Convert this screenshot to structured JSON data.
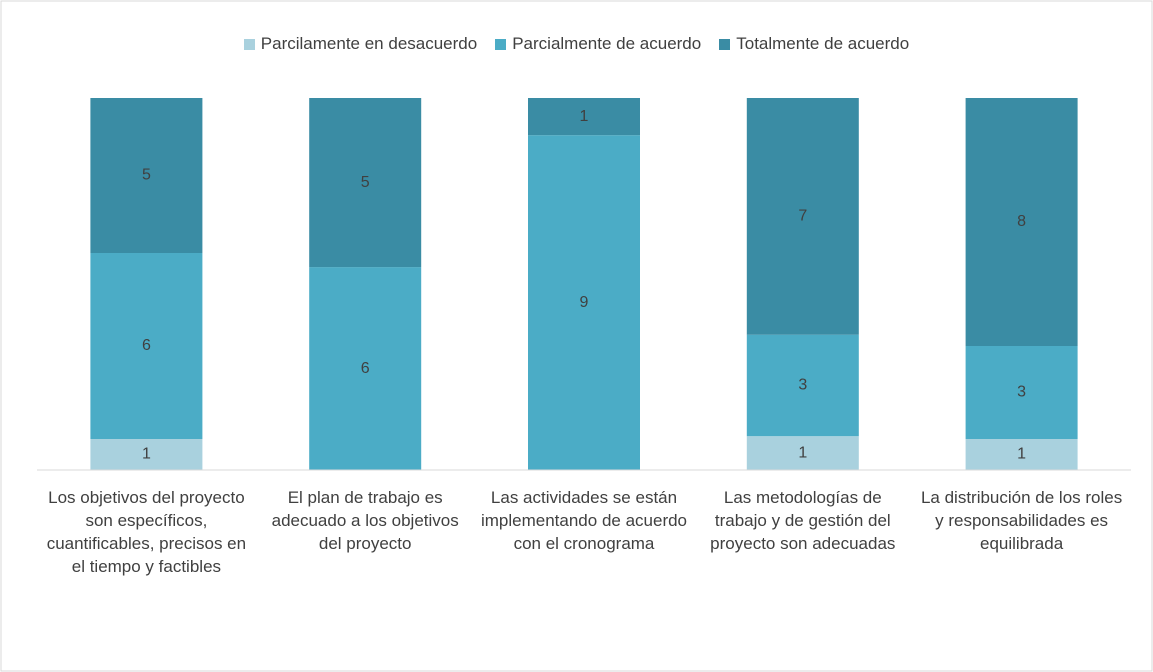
{
  "chart_data": {
    "type": "stacked_bar_100",
    "categories": [
      "Los objetivos del proyecto son específicos, cuantificables, precisos en el tiempo y factibles",
      "El plan de trabajo es adecuado a los objetivos del proyecto",
      "Las actividades se están implementando de acuerdo con el cronograma",
      "Las metodologías de trabajo y de gestión del proyecto son adecuadas",
      "La distribución de los roles y responsabilidades es equilibrada"
    ],
    "series": [
      {
        "name": "Parcilamente en desacuerdo",
        "color": "#a9d1de",
        "values": [
          1,
          0,
          0,
          1,
          1
        ]
      },
      {
        "name": "Parcialmente de acuerdo",
        "color": "#4bacc6",
        "values": [
          6,
          6,
          9,
          3,
          3
        ]
      },
      {
        "name": "Totalmente de acuerdo",
        "color": "#3a8ca4",
        "values": [
          5,
          5,
          1,
          7,
          8
        ]
      }
    ],
    "legend": "top"
  }
}
